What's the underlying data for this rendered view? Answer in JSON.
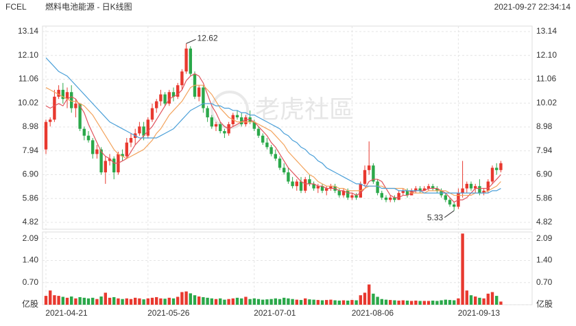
{
  "chart_data": {
    "type": "candlestick",
    "symbol": "FCEL",
    "title": "燃料电池能源 - 日K线图",
    "timestamp": "2021-09-27 22:34:14",
    "watermark": "老虎社區",
    "categories": [
      "2021-04-21",
      null,
      null,
      null,
      null,
      null,
      null,
      null,
      null,
      null,
      null,
      null,
      null,
      null,
      null,
      null,
      null,
      null,
      null,
      null,
      null,
      null,
      null,
      null,
      "2021-05-26",
      null,
      null,
      null,
      null,
      null,
      null,
      null,
      null,
      null,
      null,
      null,
      null,
      null,
      null,
      null,
      null,
      null,
      null,
      null,
      null,
      null,
      null,
      null,
      null,
      "2021-07-01",
      null,
      null,
      null,
      null,
      null,
      null,
      null,
      null,
      null,
      null,
      null,
      null,
      null,
      null,
      null,
      null,
      null,
      null,
      null,
      null,
      null,
      null,
      "2021-08-06",
      null,
      null,
      null,
      null,
      null,
      null,
      null,
      null,
      null,
      null,
      null,
      null,
      null,
      null,
      null,
      null,
      null,
      null,
      null,
      null,
      null,
      null,
      null,
      null,
      "2021-09-13",
      null,
      null,
      null,
      null,
      null,
      null,
      null,
      null,
      null,
      null
    ],
    "ohlc": [
      [
        8.0,
        9.3,
        7.8,
        9.2
      ],
      [
        9.2,
        9.4,
        9.0,
        9.3
      ],
      [
        9.3,
        10.6,
        9.2,
        10.3
      ],
      [
        10.3,
        10.8,
        10.2,
        10.6
      ],
      [
        10.6,
        10.9,
        10.0,
        10.2
      ],
      [
        10.2,
        10.7,
        9.8,
        10.5
      ],
      [
        10.5,
        10.8,
        9.6,
        9.8
      ],
      [
        9.8,
        10.2,
        9.4,
        10.0
      ],
      [
        10.0,
        10.0,
        8.8,
        8.9
      ],
      [
        8.9,
        9.0,
        8.4,
        8.6
      ],
      [
        8.6,
        8.8,
        8.3,
        8.4
      ],
      [
        8.4,
        8.5,
        7.6,
        7.8
      ],
      [
        7.8,
        8.2,
        7.6,
        8.0
      ],
      [
        8.0,
        8.1,
        6.9,
        7.0
      ],
      [
        7.0,
        7.7,
        6.5,
        7.5
      ],
      [
        7.5,
        7.8,
        7.3,
        7.6
      ],
      [
        7.6,
        7.7,
        6.7,
        7.0
      ],
      [
        7.0,
        7.9,
        6.9,
        7.8
      ],
      [
        7.8,
        8.0,
        7.5,
        7.7
      ],
      [
        7.7,
        8.5,
        7.6,
        8.3
      ],
      [
        8.3,
        8.7,
        8.1,
        8.5
      ],
      [
        8.5,
        8.9,
        8.2,
        8.7
      ],
      [
        8.7,
        9.2,
        8.6,
        9.0
      ],
      [
        9.0,
        9.2,
        8.4,
        8.6
      ],
      [
        8.6,
        9.4,
        8.5,
        9.3
      ],
      [
        9.3,
        10.0,
        9.2,
        9.8
      ],
      [
        9.8,
        10.2,
        9.6,
        10.1
      ],
      [
        10.1,
        10.6,
        9.9,
        10.4
      ],
      [
        10.4,
        10.5,
        9.9,
        10.0
      ],
      [
        10.0,
        10.6,
        9.9,
        10.5
      ],
      [
        10.5,
        10.7,
        10.1,
        10.3
      ],
      [
        10.3,
        10.9,
        10.2,
        10.8
      ],
      [
        10.8,
        11.5,
        10.6,
        11.4
      ],
      [
        11.4,
        12.62,
        11.3,
        12.4
      ],
      [
        12.4,
        12.5,
        11.2,
        11.3
      ],
      [
        11.3,
        11.4,
        10.2,
        10.3
      ],
      [
        10.3,
        10.8,
        10.1,
        10.7
      ],
      [
        10.7,
        10.8,
        9.6,
        9.8
      ],
      [
        9.8,
        9.9,
        9.2,
        9.4
      ],
      [
        9.4,
        9.5,
        8.9,
        9.0
      ],
      [
        9.0,
        9.2,
        8.8,
        9.1
      ],
      [
        9.1,
        9.2,
        8.7,
        8.8
      ],
      [
        8.8,
        8.9,
        8.5,
        8.7
      ],
      [
        8.7,
        9.2,
        8.6,
        9.1
      ],
      [
        9.1,
        9.6,
        9.0,
        9.5
      ],
      [
        9.5,
        9.7,
        9.3,
        9.4
      ],
      [
        9.4,
        9.6,
        9.0,
        9.1
      ],
      [
        9.1,
        9.5,
        9.0,
        9.4
      ],
      [
        9.4,
        9.7,
        9.1,
        9.2
      ],
      [
        9.2,
        9.3,
        8.8,
        8.9
      ],
      [
        8.9,
        9.0,
        8.5,
        8.6
      ],
      [
        8.6,
        8.7,
        8.2,
        8.3
      ],
      [
        8.3,
        8.5,
        8.0,
        8.1
      ],
      [
        8.1,
        8.2,
        7.7,
        7.8
      ],
      [
        7.8,
        8.0,
        7.5,
        7.6
      ],
      [
        7.6,
        7.7,
        7.1,
        7.2
      ],
      [
        7.2,
        7.4,
        6.9,
        7.0
      ],
      [
        7.0,
        7.2,
        6.5,
        6.6
      ],
      [
        6.6,
        6.8,
        6.3,
        6.4
      ],
      [
        6.4,
        6.7,
        6.2,
        6.6
      ],
      [
        6.6,
        6.8,
        6.1,
        6.2
      ],
      [
        6.2,
        6.8,
        6.1,
        6.7
      ],
      [
        6.7,
        6.9,
        6.4,
        6.5
      ],
      [
        6.5,
        6.6,
        6.2,
        6.3
      ],
      [
        6.3,
        6.5,
        6.1,
        6.4
      ],
      [
        6.4,
        6.5,
        6.1,
        6.2
      ],
      [
        6.2,
        6.4,
        6.0,
        6.3
      ],
      [
        6.3,
        6.5,
        6.2,
        6.4
      ],
      [
        6.4,
        6.5,
        6.1,
        6.2
      ],
      [
        6.2,
        6.3,
        5.9,
        6.0
      ],
      [
        6.0,
        6.3,
        5.9,
        6.2
      ],
      [
        6.2,
        6.3,
        5.8,
        5.9
      ],
      [
        5.9,
        6.1,
        5.8,
        6.0
      ],
      [
        6.0,
        6.1,
        5.8,
        5.9
      ],
      [
        5.9,
        6.6,
        5.9,
        6.5
      ],
      [
        6.5,
        7.3,
        6.4,
        7.1
      ],
      [
        7.1,
        8.35,
        6.9,
        7.3
      ],
      [
        7.3,
        7.4,
        6.5,
        6.6
      ],
      [
        6.6,
        6.7,
        6.0,
        6.1
      ],
      [
        6.1,
        6.2,
        5.8,
        5.9
      ],
      [
        5.9,
        6.0,
        5.7,
        5.8
      ],
      [
        5.8,
        6.0,
        5.7,
        5.9
      ],
      [
        5.9,
        6.0,
        5.7,
        5.8
      ],
      [
        5.8,
        6.2,
        5.8,
        6.1
      ],
      [
        6.1,
        6.3,
        6.0,
        6.2
      ],
      [
        6.2,
        6.3,
        5.9,
        6.0
      ],
      [
        6.0,
        6.3,
        6.0,
        6.2
      ],
      [
        6.2,
        6.4,
        6.1,
        6.3
      ],
      [
        6.3,
        6.4,
        6.1,
        6.2
      ],
      [
        6.2,
        6.4,
        6.2,
        6.3
      ],
      [
        6.3,
        6.5,
        6.2,
        6.4
      ],
      [
        6.4,
        6.5,
        6.2,
        6.3
      ],
      [
        6.3,
        6.4,
        6.1,
        6.2
      ],
      [
        6.2,
        6.3,
        5.9,
        6.0
      ],
      [
        6.0,
        6.1,
        5.7,
        5.8
      ],
      [
        5.8,
        5.9,
        5.5,
        5.6
      ],
      [
        5.6,
        5.7,
        5.33,
        5.5
      ],
      [
        5.5,
        6.3,
        5.4,
        6.1
      ],
      [
        6.1,
        7.5,
        5.9,
        6.3
      ],
      [
        6.3,
        6.6,
        6.1,
        6.5
      ],
      [
        6.5,
        6.6,
        6.2,
        6.3
      ],
      [
        6.3,
        6.5,
        6.1,
        6.4
      ],
      [
        6.4,
        6.7,
        6.0,
        6.1
      ],
      [
        6.1,
        6.3,
        6.0,
        6.2
      ],
      [
        6.2,
        6.7,
        6.1,
        6.6
      ],
      [
        6.6,
        7.3,
        6.5,
        7.2
      ],
      [
        7.2,
        7.4,
        6.9,
        7.1
      ],
      [
        7.1,
        7.5,
        7.0,
        7.4
      ]
    ],
    "up_color": "#e8392f",
    "down_color": "#2ba84a",
    "series": [
      {
        "name": "MA5",
        "color": "#e0535c",
        "values": [
          9.9,
          9.8,
          9.9,
          10.0,
          9.9,
          10.2,
          10.3,
          10.2,
          9.9,
          9.6,
          9.1,
          8.7,
          8.3,
          7.9,
          7.7,
          7.6,
          7.4,
          7.4,
          7.5,
          7.6,
          7.9,
          8.2,
          8.4,
          8.6,
          8.8,
          9.0,
          9.3,
          9.6,
          9.9,
          10.2,
          10.3,
          10.4,
          10.6,
          11.0,
          11.2,
          11.3,
          11.2,
          10.9,
          10.4,
          9.9,
          9.6,
          9.2,
          9.0,
          8.9,
          9.0,
          9.1,
          9.2,
          9.3,
          9.3,
          9.2,
          9.0,
          8.8,
          8.6,
          8.3,
          8.1,
          7.8,
          7.5,
          7.2,
          7.0,
          6.8,
          6.6,
          6.5,
          6.5,
          6.5,
          6.4,
          6.4,
          6.3,
          6.3,
          6.3,
          6.2,
          6.2,
          6.1,
          6.1,
          6.0,
          6.1,
          6.3,
          6.6,
          6.7,
          6.7,
          6.6,
          6.3,
          6.0,
          5.9,
          5.9,
          6.0,
          6.0,
          6.1,
          6.2,
          6.2,
          6.2,
          6.3,
          6.3,
          6.3,
          6.2,
          6.1,
          5.9,
          5.7,
          5.8,
          5.8,
          5.9,
          6.1,
          6.3,
          6.3,
          6.3,
          6.3,
          6.5,
          6.7,
          6.9
        ]
      },
      {
        "name": "MA10",
        "color": "#f3a35c",
        "values": [
          10.7,
          10.6,
          10.5,
          10.4,
          10.3,
          10.2,
          10.1,
          10.1,
          10.0,
          9.9,
          9.7,
          9.5,
          9.2,
          8.9,
          8.6,
          8.3,
          8.0,
          7.8,
          7.7,
          7.6,
          7.7,
          7.8,
          7.9,
          8.0,
          8.2,
          8.4,
          8.7,
          8.9,
          9.2,
          9.5,
          9.7,
          9.9,
          10.1,
          10.4,
          10.7,
          10.8,
          10.8,
          10.8,
          10.6,
          10.4,
          10.1,
          9.8,
          9.6,
          9.4,
          9.3,
          9.2,
          9.2,
          9.2,
          9.2,
          9.2,
          9.1,
          9.0,
          8.9,
          8.8,
          8.6,
          8.4,
          8.2,
          7.9,
          7.7,
          7.5,
          7.3,
          7.1,
          6.9,
          6.8,
          6.6,
          6.5,
          6.4,
          6.4,
          6.4,
          6.3,
          6.3,
          6.2,
          6.2,
          6.2,
          6.2,
          6.3,
          6.4,
          6.4,
          6.4,
          6.4,
          6.3,
          6.3,
          6.3,
          6.3,
          6.3,
          6.2,
          6.1,
          6.1,
          6.1,
          6.1,
          6.2,
          6.2,
          6.2,
          6.2,
          6.2,
          6.1,
          6.0,
          6.0,
          6.0,
          6.0,
          6.0,
          6.1,
          6.1,
          6.1,
          6.2,
          6.3,
          6.4,
          6.6
        ]
      },
      {
        "name": "MA20",
        "color": "#4a9fd8",
        "values": [
          12.0,
          11.8,
          11.6,
          11.4,
          11.3,
          11.2,
          11.0,
          10.8,
          10.6,
          10.4,
          10.2,
          10.0,
          9.8,
          9.6,
          9.4,
          9.2,
          9.1,
          9.0,
          8.9,
          8.8,
          8.7,
          8.6,
          8.5,
          8.5,
          8.5,
          8.5,
          8.5,
          8.6,
          8.7,
          8.8,
          8.9,
          9.1,
          9.3,
          9.5,
          9.7,
          9.8,
          9.9,
          10.0,
          10.0,
          10.0,
          9.9,
          9.9,
          9.8,
          9.8,
          9.7,
          9.7,
          9.6,
          9.6,
          9.5,
          9.5,
          9.4,
          9.3,
          9.2,
          9.1,
          9.0,
          8.9,
          8.7,
          8.6,
          8.4,
          8.3,
          8.1,
          8.0,
          7.8,
          7.7,
          7.5,
          7.4,
          7.2,
          7.1,
          7.0,
          6.9,
          6.8,
          6.7,
          6.6,
          6.5,
          6.5,
          6.4,
          6.4,
          6.4,
          6.4,
          6.3,
          6.3,
          6.3,
          6.3,
          6.2,
          6.2,
          6.2,
          6.2,
          6.2,
          6.2,
          6.1,
          6.1,
          6.1,
          6.1,
          6.1,
          6.1,
          6.1,
          6.1,
          6.1,
          6.1,
          6.1,
          6.1,
          6.1,
          6.1,
          6.1,
          6.1,
          6.2,
          6.2,
          6.3
        ]
      }
    ],
    "ylim": [
      4.58,
      13.38
    ],
    "yticks": [
      4.82,
      5.86,
      {
        "value": 6.9,
        "label": "6.90"
      },
      7.94,
      8.98,
      10.02,
      11.06,
      {
        "value": 12.1,
        "label": "12.10"
      },
      13.14
    ],
    "grid": true,
    "volume": {
      "values": [
        0.28,
        0.45,
        0.3,
        0.28,
        0.25,
        0.22,
        0.26,
        0.2,
        0.24,
        0.22,
        0.2,
        0.22,
        0.18,
        0.26,
        0.38,
        0.22,
        0.24,
        0.2,
        0.18,
        0.2,
        0.18,
        0.22,
        0.2,
        0.17,
        0.2,
        0.22,
        0.24,
        0.2,
        0.19,
        0.22,
        0.2,
        0.25,
        0.4,
        0.42,
        0.36,
        0.3,
        0.26,
        0.24,
        0.22,
        0.2,
        0.18,
        0.2,
        0.16,
        0.18,
        0.2,
        0.22,
        0.2,
        0.25,
        0.18,
        0.2,
        0.18,
        0.16,
        0.17,
        0.18,
        0.2,
        0.18,
        0.22,
        0.2,
        0.18,
        0.16,
        0.15,
        0.2,
        0.17,
        0.16,
        0.15,
        0.14,
        0.15,
        0.16,
        0.14,
        0.13,
        0.14,
        0.13,
        0.15,
        0.14,
        0.3,
        0.38,
        0.64,
        0.35,
        0.25,
        0.18,
        0.16,
        0.15,
        0.14,
        0.13,
        0.14,
        0.13,
        0.12,
        0.13,
        0.12,
        0.12,
        0.12,
        0.13,
        0.12,
        0.14,
        0.16,
        0.15,
        0.14,
        0.2,
        2.25,
        0.45,
        0.3,
        0.26,
        0.22,
        0.2,
        0.35,
        0.4,
        0.28,
        0.1
      ],
      "ylim": [
        0,
        2.3
      ],
      "yticks": [
        {
          "value": 0,
          "label": "亿股"
        },
        {
          "value": 0.7,
          "label": "0.70"
        },
        {
          "value": 1.4,
          "label": "1.40"
        },
        2.09
      ]
    }
  }
}
